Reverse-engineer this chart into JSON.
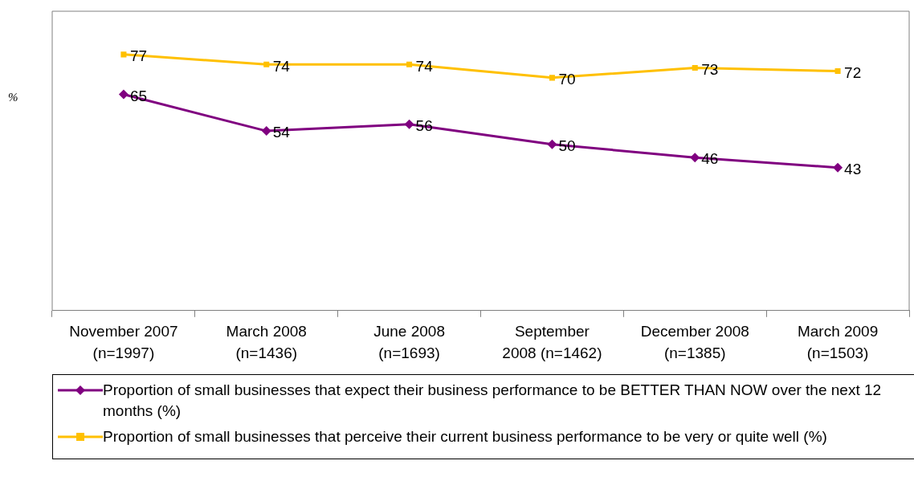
{
  "chart_data": {
    "type": "line",
    "ylabel": "%",
    "categories": [
      "November 2007\n(n=1997)",
      "March 2008\n(n=1436)",
      "June 2008\n(n=1693)",
      "September\n2008 (n=1462)",
      "December 2008\n(n=1385)",
      "March 2009\n(n=1503)"
    ],
    "series": [
      {
        "name": "Proportion of small businesses that expect their business performance to be BETTER THAN NOW over the next 12 months (%)",
        "color": "#800080",
        "marker": "diamond",
        "values": [
          65,
          54,
          56,
          50,
          46,
          43
        ]
      },
      {
        "name": "Proportion of small businesses that perceive their current business performance to be very or quite well (%)",
        "color": "#ffc000",
        "marker": "square",
        "values": [
          77,
          74,
          74,
          70,
          73,
          72
        ]
      }
    ],
    "ylim": [
      0,
      90
    ],
    "tick_labels": "x",
    "data_labels": true,
    "grid": false,
    "legend": "bottom",
    "line_style": "solid"
  }
}
